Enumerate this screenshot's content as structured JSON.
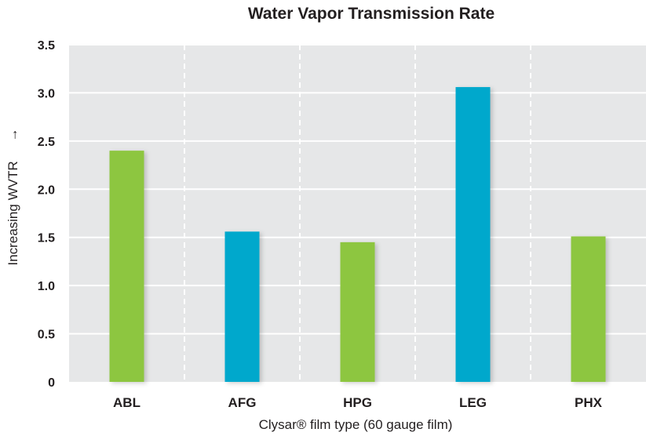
{
  "chart_data": {
    "type": "bar",
    "title": "Water Vapor Transmission Rate",
    "xlabel": "Clysar® film type (60 gauge film)",
    "ylabel": "Increasing WVTR",
    "ylabel_arrow": "→",
    "ylim": [
      0,
      3.5
    ],
    "yticks": [
      "0",
      "0.5",
      "1.0",
      "1.5",
      "2.0",
      "2.5",
      "3.0",
      "3.5"
    ],
    "ytick_values": [
      0,
      0.5,
      1.0,
      1.5,
      2.0,
      2.5,
      3.0,
      3.5
    ],
    "categories": [
      "ABL",
      "AFG",
      "HPG",
      "LEG",
      "PHX"
    ],
    "values": [
      2.4,
      1.56,
      1.45,
      3.06,
      1.51
    ],
    "bar_colors": [
      "#8dc63f",
      "#00a8cc",
      "#8dc63f",
      "#00a8cc",
      "#8dc63f"
    ],
    "grid": true,
    "plot_background": "#e6e7e8",
    "grid_color": "#ffffff"
  }
}
